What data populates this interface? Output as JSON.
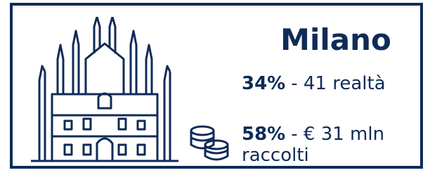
{
  "title": "Milano",
  "stats": [
    {
      "percent": "34%",
      "text": "- 41 realtà"
    },
    {
      "percent": "58%",
      "text": "- € 31 mln raccolti"
    }
  ]
}
